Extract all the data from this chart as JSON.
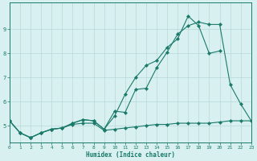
{
  "x": [
    0,
    1,
    2,
    3,
    4,
    5,
    6,
    7,
    8,
    9,
    10,
    11,
    12,
    13,
    14,
    15,
    16,
    17,
    18,
    19,
    20,
    21,
    22,
    23
  ],
  "line1": [
    5.2,
    4.7,
    4.5,
    4.7,
    4.85,
    4.9,
    5.05,
    5.1,
    5.1,
    4.8,
    4.85,
    4.9,
    4.95,
    5.0,
    5.05,
    5.05,
    5.1,
    5.1,
    5.1,
    5.1,
    5.15,
    5.2,
    5.2,
    5.2
  ],
  "line2": [
    5.2,
    4.7,
    4.5,
    4.7,
    4.85,
    4.9,
    5.1,
    5.25,
    5.2,
    4.85,
    5.6,
    5.55,
    6.5,
    6.55,
    7.4,
    8.05,
    8.8,
    9.15,
    9.3,
    9.2,
    9.2,
    6.7,
    5.9,
    5.2
  ],
  "line3": [
    5.2,
    4.7,
    4.5,
    4.7,
    4.85,
    4.9,
    5.1,
    5.25,
    5.2,
    4.85,
    5.4,
    6.3,
    7.0,
    7.5,
    7.7,
    8.25,
    8.6,
    9.55,
    9.15,
    8.0,
    8.1,
    null,
    null,
    null
  ],
  "color": "#1a7a6a",
  "bg_color": "#d8f0f0",
  "grid_color": "#b8d8d8",
  "xlabel": "Humidex (Indice chaleur)",
  "xlim": [
    0,
    23
  ],
  "ylim": [
    4.3,
    10.1
  ],
  "yticks": [
    5,
    6,
    7,
    8,
    9
  ],
  "xticks": [
    0,
    1,
    2,
    3,
    4,
    5,
    6,
    7,
    8,
    9,
    10,
    11,
    12,
    13,
    14,
    15,
    16,
    17,
    18,
    19,
    20,
    21,
    22,
    23
  ],
  "axis_color": "#1a7a6a",
  "tick_color": "#1a7a6a",
  "tick_fontsize": 4.5,
  "xlabel_fontsize": 5.5,
  "marker_size": 2.2,
  "linewidth": 0.8
}
